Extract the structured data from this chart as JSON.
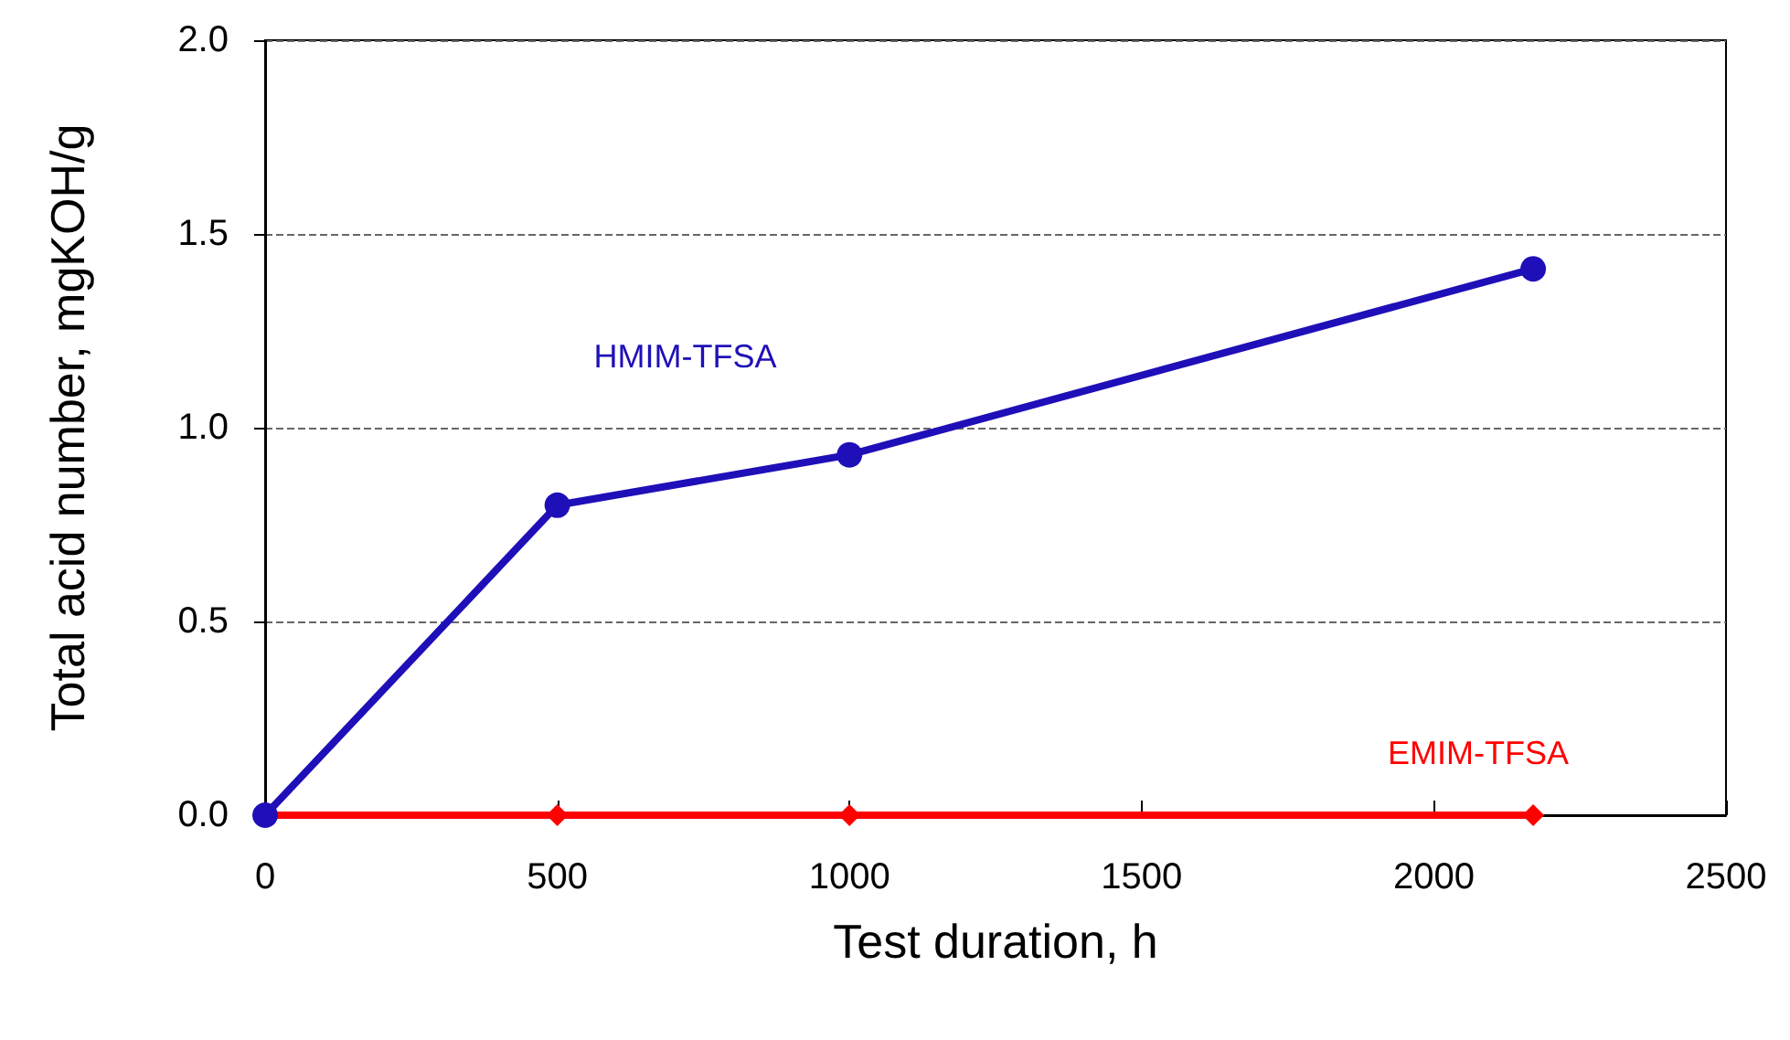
{
  "chart_data": {
    "type": "line",
    "xlabel": "Test duration, h",
    "ylabel": "Total acid number, mgKOH/g",
    "xlim": [
      0,
      2500
    ],
    "xticks": [
      0,
      500,
      {
        "value": 1000,
        "label": "1000"
      },
      {
        "value": 1500,
        "label": "1500"
      },
      {
        "value": 2000,
        "label": "2000"
      },
      {
        "value": 2500,
        "label": "2500"
      }
    ],
    "ylim": [
      0,
      2
    ],
    "yticks": [
      {
        "value": 0,
        "label": "0.0"
      },
      0.5,
      {
        "value": 1,
        "label": "1.0"
      },
      1.5,
      {
        "value": 2,
        "label": "2.0"
      }
    ],
    "grid": "y",
    "series": [
      {
        "name": "HMIM-TFSA",
        "x": [
          0,
          500,
          1000,
          2170
        ],
        "values": [
          0,
          0.8,
          0.93,
          1.41
        ],
        "color": "#1f0fb8",
        "marker": "circle"
      },
      {
        "name": "EMIM-TFSA",
        "x": [
          0,
          500,
          1000,
          2170
        ],
        "values": [
          0,
          0,
          0,
          0
        ],
        "color": "#ff0000",
        "marker": "diamond"
      }
    ]
  }
}
